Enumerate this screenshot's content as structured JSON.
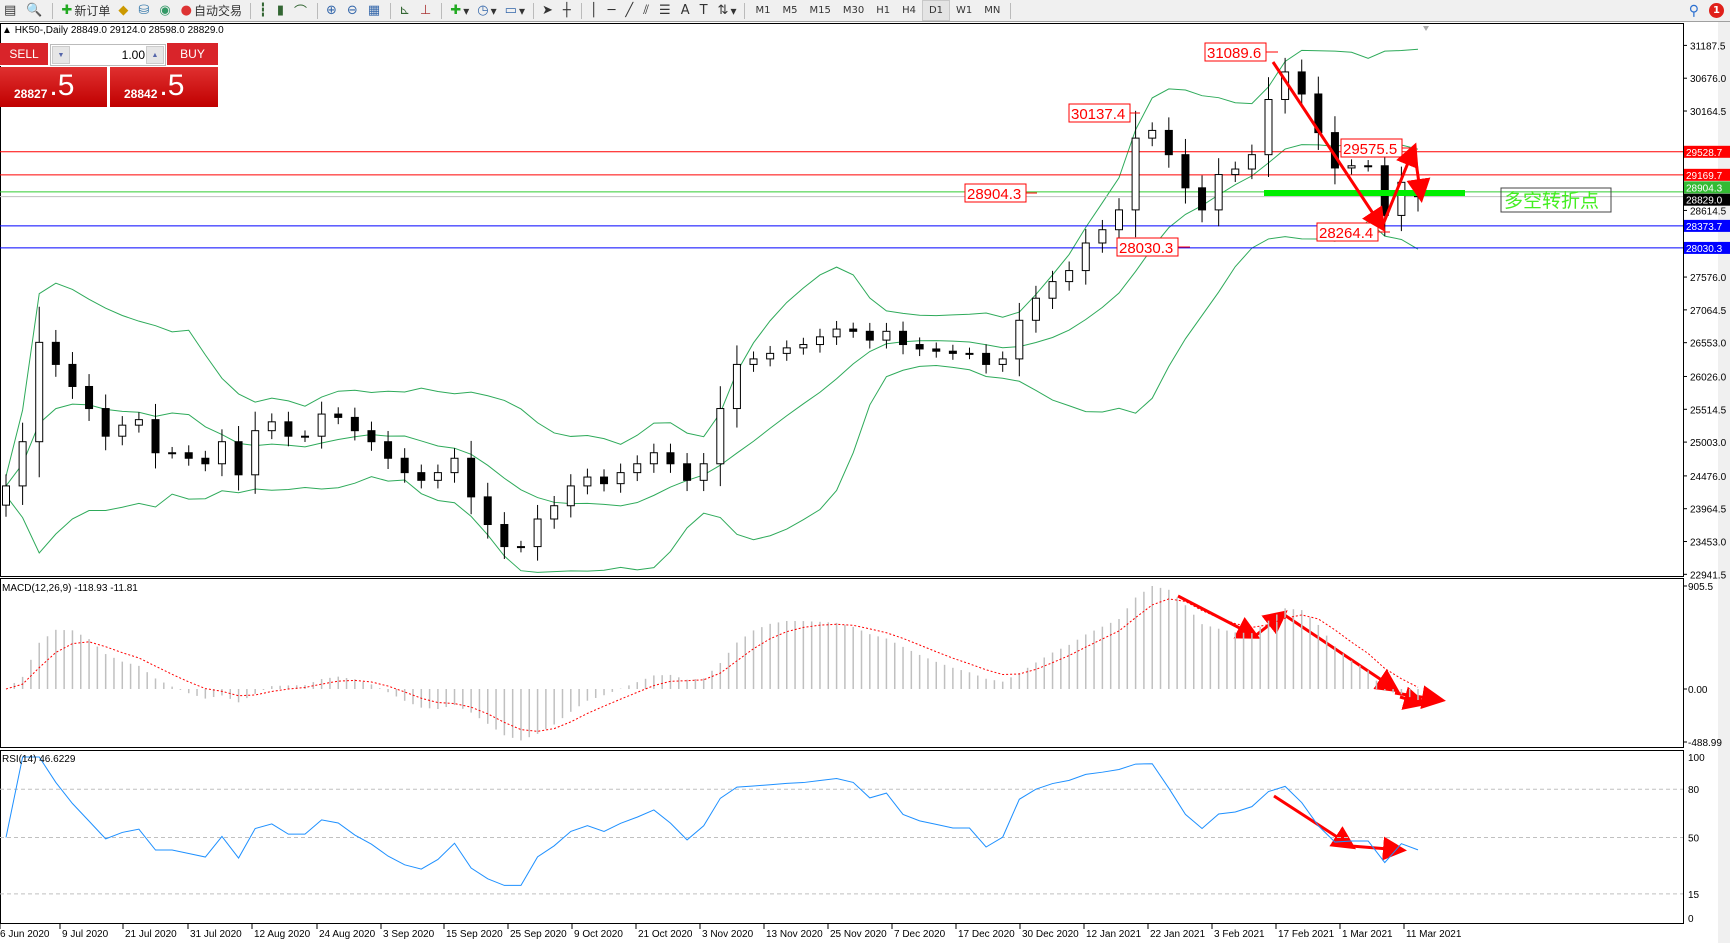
{
  "toolbar": {
    "new_order": "新订单",
    "auto_trading": "自动交易",
    "timeframes": [
      "M1",
      "M5",
      "M15",
      "M30",
      "H1",
      "H4",
      "D1",
      "W1",
      "MN"
    ],
    "active_timeframe": "D1",
    "notification_count": "1"
  },
  "header": {
    "text": "HK50-,Daily  28849.0 29124.0 28598.0 28829.0"
  },
  "panel": {
    "sell_label": "SELL",
    "buy_label": "BUY",
    "lot": "1.00",
    "sell_price_main": "28827",
    "sell_price_big": ".5",
    "buy_price_main": "28842",
    "buy_price_big": ".5"
  },
  "chart_data": {
    "type": "candlestick",
    "symbol": "HK50-",
    "timeframe": "Daily",
    "last_ohlc": {
      "open": 28849.0,
      "high": 29124.0,
      "low": 28598.0,
      "close": 28829.0
    },
    "closes": [
      24320,
      25009,
      26558,
      26214,
      25870,
      25526,
      25095,
      25267,
      25353,
      24837,
      24837,
      24751,
      24665,
      25009,
      24493,
      25181,
      25319,
      25095,
      25095,
      25440,
      25388,
      25181,
      25009,
      24751,
      24527,
      24407,
      24527,
      24751,
      24149,
      23718,
      23374,
      23374,
      23804,
      24011,
      24320,
      24458,
      24355,
      24527,
      24665,
      24837,
      24665,
      24407,
      24665,
      25526,
      26214,
      26300,
      26386,
      26472,
      26524,
      26644,
      26765,
      26730,
      26593,
      26730,
      26524,
      26455,
      26420,
      26386,
      26386,
      26214,
      26300,
      26902,
      27246,
      27505,
      27677,
      28107,
      28314,
      28623,
      29742,
      29862,
      29484,
      28967,
      28623,
      29174,
      29260,
      29484,
      30344,
      30774,
      30430,
      29828,
      29277,
      29311,
      29311,
      28537,
      29053,
      28829
    ],
    "ylim": [
      22941.5,
      31187.5
    ],
    "y_ticks": [
      "31187.5",
      "30676.0",
      "30164.5",
      "28614.5",
      "27576.0",
      "27064.5",
      "26553.0",
      "26026.0",
      "25514.5",
      "25003.0",
      "24476.0",
      "23964.5",
      "23453.0",
      "22941.5"
    ],
    "x_ticks": [
      "6 Jun 2020",
      "9 Jul 2020",
      "21 Jul 2020",
      "31 Jul 2020",
      "12 Aug 2020",
      "24 Aug 2020",
      "3 Sep 2020",
      "15 Sep 2020",
      "25 Sep 2020",
      "9 Oct 2020",
      "21 Oct 2020",
      "3 Nov 2020",
      "13 Nov 2020",
      "25 Nov 2020",
      "7 Dec 2020",
      "17 Dec 2020",
      "30 Dec 2020",
      "12 Jan 2021",
      "22 Jan 2021",
      "3 Feb 2021",
      "17 Feb 2021",
      "1 Mar 2021",
      "11 Mar 2021"
    ],
    "bollinger": {
      "color": "#2eaa5a"
    },
    "horizontal_lines": [
      {
        "value": "29528.7",
        "color": "#ff0000",
        "label_bg": "#ff0000"
      },
      {
        "value": "29169.7",
        "color": "#ff0000",
        "label_bg": "#ff0000"
      },
      {
        "value": "28904.3",
        "color": "#33cc33",
        "label_bg": "#33bb33"
      },
      {
        "value": "28829.0",
        "color": "#c0c0c0",
        "label_bg": "#000000"
      },
      {
        "value": "28373.7",
        "color": "#0000ff",
        "label_bg": "#0000ff"
      },
      {
        "value": "28030.3",
        "color": "#0000ff",
        "label_bg": "#0000ff"
      }
    ],
    "annotations": [
      "31089.6",
      "30137.4",
      "28904.3",
      "28030.3",
      "28264.4",
      "29575.5"
    ],
    "pivot_text": "多空转折点",
    "macd": {
      "label": "MACD(12,26,9) -118.93 -11.81",
      "ticks": [
        "905.5",
        "0.00",
        "-488.99"
      ],
      "range": [
        -488.99,
        905.5
      ],
      "histogram_color": "#c0c0c0",
      "signal_color": "#ff0000"
    },
    "rsi": {
      "label": "RSI(14) 46.6229",
      "ticks": [
        "100",
        "80",
        "50",
        "15",
        "0"
      ],
      "levels": [
        80,
        50,
        15
      ],
      "color": "#1e90ff"
    },
    "arrow_color": "#ff0000"
  }
}
